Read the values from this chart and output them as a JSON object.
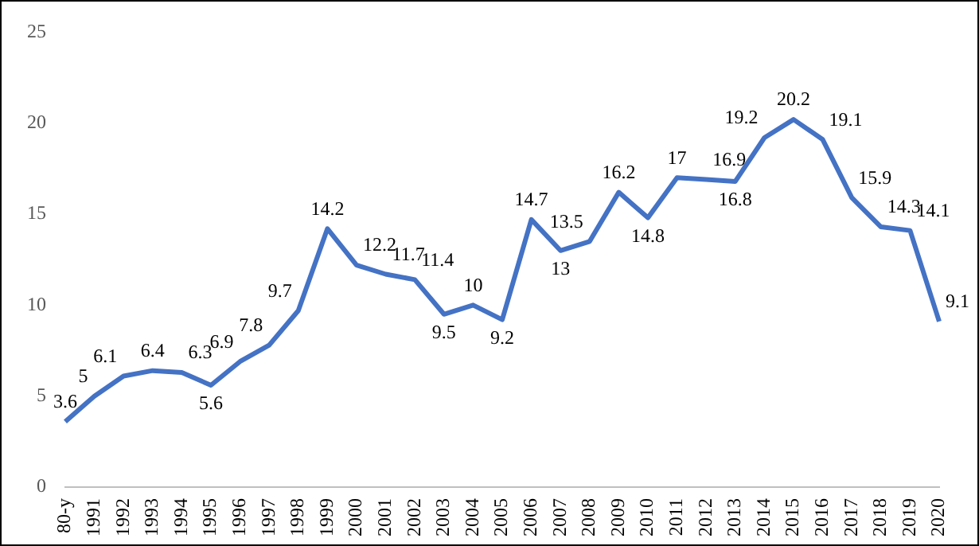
{
  "chart_data": {
    "type": "line",
    "categories": [
      "80-y",
      "1991",
      "1992",
      "1993",
      "1994",
      "1995",
      "1996",
      "1997",
      "1998",
      "1999",
      "2000",
      "2001",
      "2002",
      "2003",
      "2004",
      "2005",
      "2006",
      "2007",
      "2008",
      "2009",
      "2010",
      "2011",
      "2012",
      "2013",
      "2014",
      "2015",
      "2016",
      "2017",
      "2018",
      "2019",
      "2020"
    ],
    "series": [
      {
        "color": "#4472c4",
        "values": [
          3.6,
          5,
          6.1,
          6.4,
          6.3,
          5.6,
          6.9,
          7.8,
          9.7,
          14.2,
          12.2,
          11.7,
          11.4,
          9.5,
          10,
          9.2,
          14.7,
          13,
          13.5,
          16.2,
          14.8,
          17,
          16.9,
          16.8,
          19.2,
          20.2,
          19.1,
          15.9,
          14.3,
          14.1,
          9.1
        ]
      }
    ],
    "ylim": [
      0,
      25
    ],
    "yticks": [
      0,
      5,
      10,
      15,
      20,
      25
    ],
    "grid": false,
    "legend": false,
    "marker": "none",
    "line_style": "solid",
    "data_labels": true
  }
}
